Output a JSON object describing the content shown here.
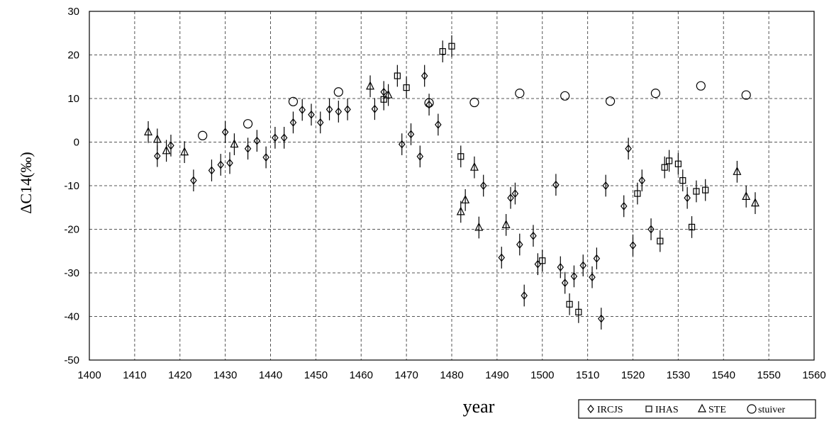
{
  "chart_data": {
    "type": "scatter",
    "title": "",
    "xlabel": "year",
    "ylabel": "ΔC14(‰)",
    "xlim": [
      1400,
      1560
    ],
    "ylim": [
      -50,
      30
    ],
    "xticks": [
      1400,
      1410,
      1420,
      1430,
      1440,
      1450,
      1460,
      1470,
      1480,
      1490,
      1500,
      1510,
      1520,
      1530,
      1540,
      1550,
      1560
    ],
    "yticks": [
      -50,
      -40,
      -30,
      -20,
      -10,
      0,
      10,
      20,
      30
    ],
    "grid": true,
    "legend_position": "bottom-right",
    "series": [
      {
        "name": "IRCJS",
        "marker": "diamond",
        "error": 2.5,
        "points": [
          [
            1415,
            -3.2
          ],
          [
            1418,
            -0.8
          ],
          [
            1423,
            -8.8
          ],
          [
            1427,
            -6.5
          ],
          [
            1429,
            -5.2
          ],
          [
            1430,
            2.3
          ],
          [
            1431,
            -4.8
          ],
          [
            1435,
            -1.5
          ],
          [
            1437,
            0.3
          ],
          [
            1439,
            -3.5
          ],
          [
            1441,
            1.0
          ],
          [
            1443,
            1.0
          ],
          [
            1445,
            4.5
          ],
          [
            1447,
            7.4
          ],
          [
            1449,
            6.3
          ],
          [
            1451,
            4.5
          ],
          [
            1453,
            7.5
          ],
          [
            1455,
            7.0
          ],
          [
            1457,
            7.5
          ],
          [
            1463,
            7.6
          ],
          [
            1465,
            11.5
          ],
          [
            1469,
            -0.5
          ],
          [
            1471,
            1.8
          ],
          [
            1473,
            -3.3
          ],
          [
            1474,
            15.2
          ],
          [
            1475,
            8.6
          ],
          [
            1477,
            4.0
          ],
          [
            1487,
            -10.0
          ],
          [
            1491,
            -26.5
          ],
          [
            1493,
            -12.8
          ],
          [
            1494,
            -11.8
          ],
          [
            1495,
            -23.5
          ],
          [
            1496,
            -35.2
          ],
          [
            1498,
            -21.5
          ],
          [
            1499,
            -28.0
          ],
          [
            1503,
            -9.8
          ],
          [
            1504,
            -28.7
          ],
          [
            1505,
            -32.3
          ],
          [
            1507,
            -30.8
          ],
          [
            1509,
            -28.3
          ],
          [
            1511,
            -31.0
          ],
          [
            1512,
            -26.7
          ],
          [
            1513,
            -40.5
          ],
          [
            1514,
            -10.0
          ],
          [
            1518,
            -14.7
          ],
          [
            1519,
            -1.5
          ],
          [
            1520,
            -23.7
          ],
          [
            1522,
            -8.8
          ],
          [
            1524,
            -20.0
          ],
          [
            1532,
            -12.8
          ]
        ]
      },
      {
        "name": "IHAS",
        "marker": "square",
        "error": 2.5,
        "points": [
          [
            1465,
            9.8
          ],
          [
            1468,
            15.2
          ],
          [
            1470,
            12.5
          ],
          [
            1478,
            20.8
          ],
          [
            1480,
            22.0
          ],
          [
            1482,
            -3.3
          ],
          [
            1500,
            -27.2
          ],
          [
            1506,
            -37.2
          ],
          [
            1508,
            -39.0
          ],
          [
            1521,
            -11.8
          ],
          [
            1526,
            -22.7
          ],
          [
            1527,
            -5.8
          ],
          [
            1528,
            -4.3
          ],
          [
            1530,
            -5.0
          ],
          [
            1531,
            -8.8
          ],
          [
            1533,
            -19.5
          ],
          [
            1534,
            -11.3
          ],
          [
            1536,
            -11.0
          ]
        ]
      },
      {
        "name": "STE",
        "marker": "triangle",
        "error": 2.5,
        "points": [
          [
            1413,
            2.3
          ],
          [
            1415,
            0.6
          ],
          [
            1417,
            -2.0
          ],
          [
            1421,
            -2.3
          ],
          [
            1432,
            -0.5
          ],
          [
            1462,
            12.8
          ],
          [
            1466,
            10.8
          ],
          [
            1482,
            -16.0
          ],
          [
            1483,
            -13.3
          ],
          [
            1485,
            -5.8
          ],
          [
            1486,
            -19.6
          ],
          [
            1492,
            -19.0
          ],
          [
            1543,
            -6.8
          ],
          [
            1545,
            -12.5
          ],
          [
            1547,
            -14.0
          ]
        ]
      },
      {
        "name": "stuiver",
        "marker": "circle",
        "error": 0,
        "points": [
          [
            1425,
            1.5
          ],
          [
            1435,
            4.2
          ],
          [
            1445,
            9.3
          ],
          [
            1455,
            11.5
          ],
          [
            1475,
            9.0
          ],
          [
            1485,
            9.1
          ],
          [
            1495,
            11.2
          ],
          [
            1505,
            10.6
          ],
          [
            1515,
            9.4
          ],
          [
            1525,
            11.2
          ],
          [
            1535,
            12.9
          ],
          [
            1545,
            10.8
          ]
        ]
      }
    ]
  }
}
